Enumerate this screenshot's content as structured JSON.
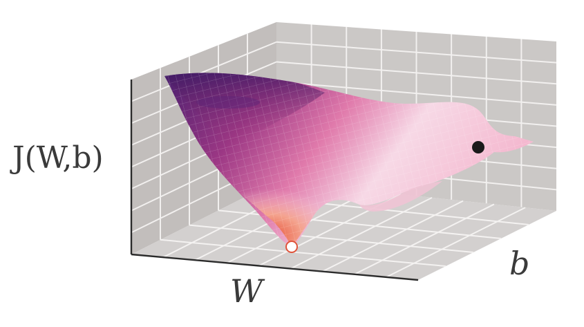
{
  "labels": {
    "z_axis": "J(W,b)",
    "x_axis": "W",
    "y_axis": "b"
  },
  "colors": {
    "panel": "#cfcccb",
    "panel_dark": "#bcb8b6",
    "grid": "#f2f0ef",
    "surface_peak": "#4a1f6e",
    "surface_mid": "#c9407f",
    "surface_light": "#f7d9e6",
    "surface_valley": "#e8553a",
    "start_point": "#1a1a1a",
    "minimum_point": "#ffffff"
  },
  "icons": {
    "start": "black-dot-icon",
    "minimum": "white-dot-icon"
  }
}
